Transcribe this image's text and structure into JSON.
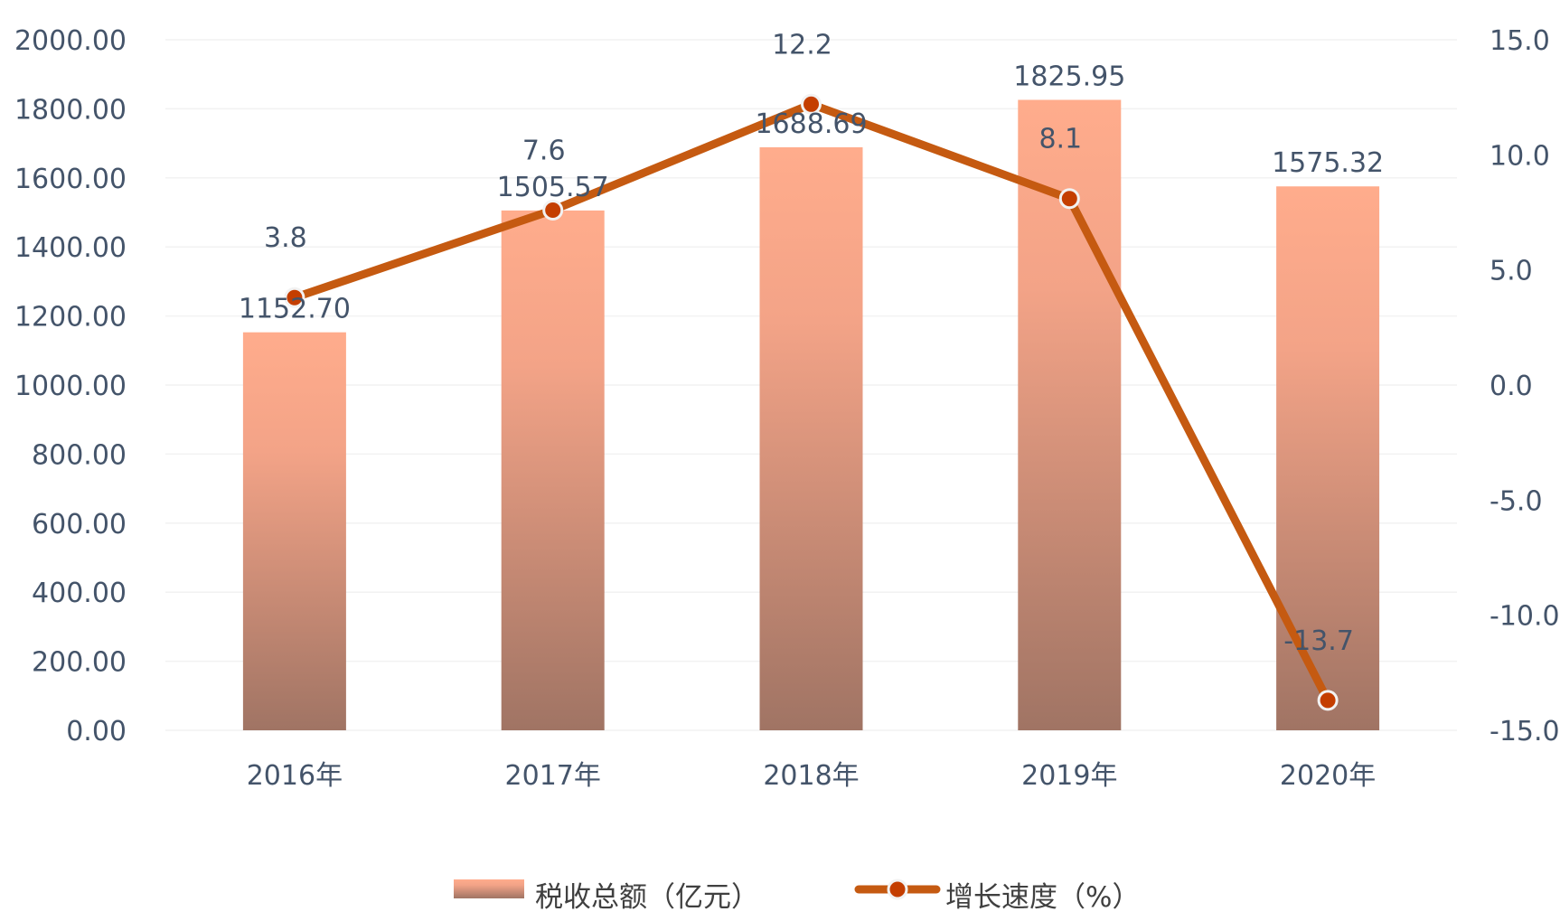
{
  "chart_data": {
    "type": "bar+line",
    "categories": [
      "2016年",
      "2017年",
      "2018年",
      "2019年",
      "2020年"
    ],
    "series": [
      {
        "name": "税收总额（亿元）",
        "type": "bar",
        "axis": "left",
        "values": [
          1152.7,
          1505.57,
          1688.69,
          1825.95,
          1575.32
        ],
        "labels": [
          "1152.70",
          "1505.57",
          "1688.69",
          "1825.95",
          "1575.32"
        ]
      },
      {
        "name": "增长速度（%）",
        "type": "line",
        "axis": "right",
        "values": [
          3.8,
          7.6,
          12.2,
          8.1,
          -13.7
        ],
        "labels": [
          "3.8",
          "7.6",
          "12.2",
          "8.1",
          "-13.7"
        ]
      }
    ],
    "y_left": {
      "range": [
        0,
        2000
      ],
      "ticks": [
        "0.00",
        "200.00",
        "400.00",
        "600.00",
        "800.00",
        "1000.00",
        "1200.00",
        "1400.00",
        "1600.00",
        "1800.00",
        "2000.00"
      ]
    },
    "y_right": {
      "range": [
        -15,
        15
      ],
      "ticks": [
        "-15.0",
        "-10.0",
        "-5.0",
        "0.0",
        "5.0",
        "10.0",
        "15.0"
      ]
    },
    "grid": true,
    "legend_position": "bottom",
    "colors": {
      "bar_top": "#ffac8c",
      "bar_bottom": "#a07464",
      "line": "#c55a11",
      "marker_fill": "#c43e00",
      "marker_stroke": "#f2f2f2",
      "text": "#44546a",
      "grid": "#f2f2f2"
    }
  }
}
